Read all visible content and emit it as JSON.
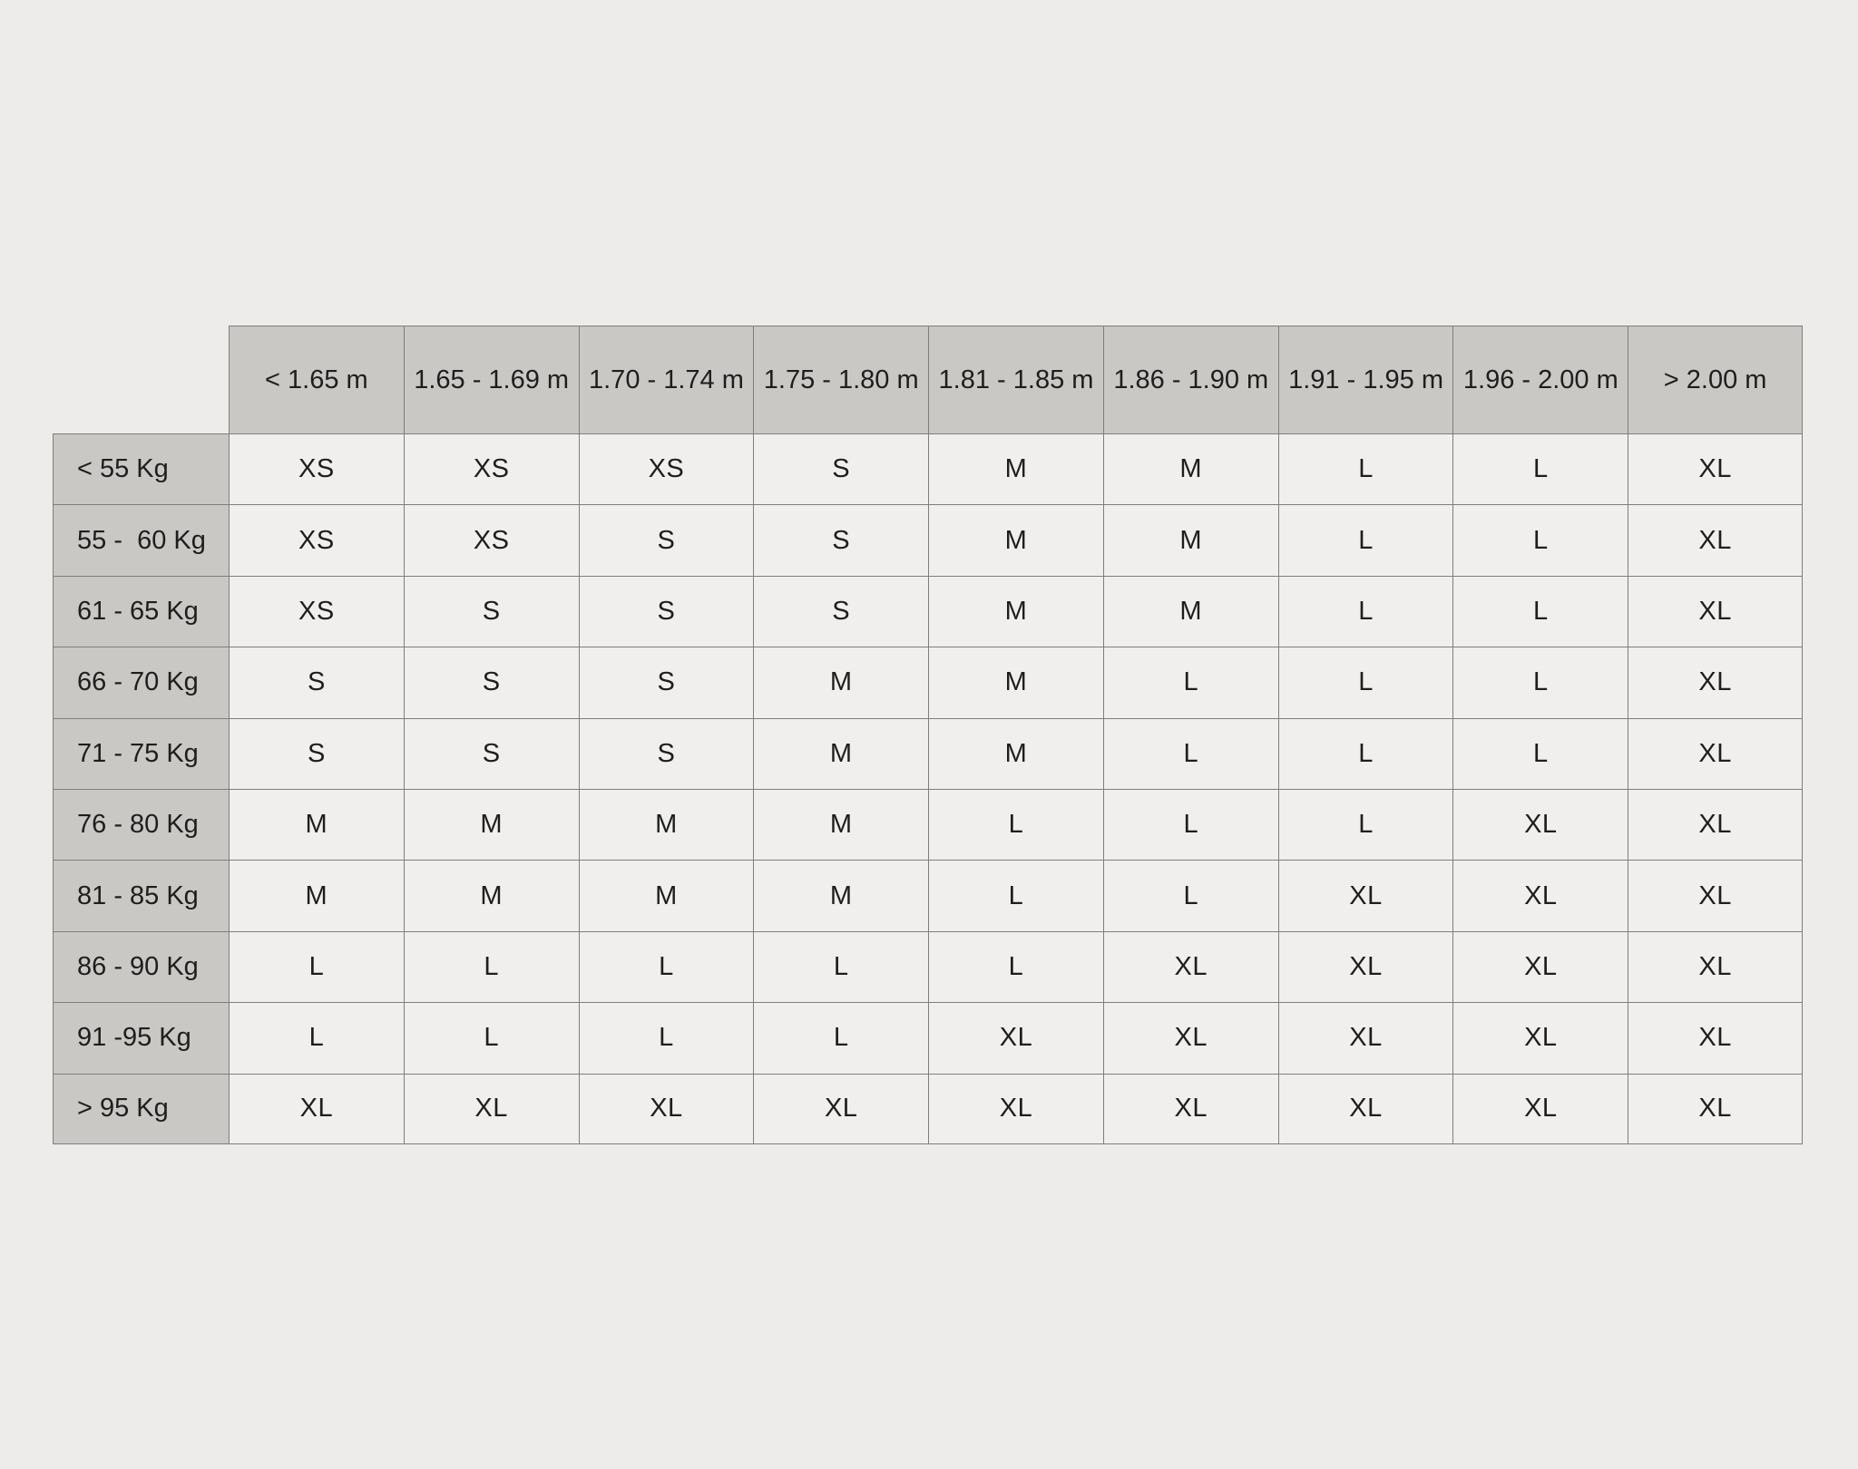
{
  "colors": {
    "background": "#edecea",
    "header_cell_bg": "#c9c8c5",
    "data_cell_bg": "#f0efed",
    "border": "#7e7e7c",
    "text": "#1e1e1e"
  },
  "chart_data": {
    "type": "table",
    "column_headers": [
      "< 1.65 m",
      "1.65 - 1.69 m",
      "1.70 - 1.74 m",
      "1.75 - 1.80 m",
      "1.81 - 1.85 m",
      "1.86 - 1.90 m",
      "1.91 - 1.95 m",
      "1.96 - 2.00 m",
      "> 2.00 m"
    ],
    "row_headers": [
      "< 55 Kg",
      "55 -  60 Kg",
      "61 - 65 Kg",
      "66 - 70 Kg",
      "71 - 75 Kg",
      "76 - 80 Kg",
      "81 - 85 Kg",
      "86 - 90 Kg",
      "91 -95 Kg",
      "> 95 Kg"
    ],
    "cells": [
      [
        "XS",
        "XS",
        "XS",
        "S",
        "M",
        "M",
        "L",
        "L",
        "XL"
      ],
      [
        "XS",
        "XS",
        "S",
        "S",
        "M",
        "M",
        "L",
        "L",
        "XL"
      ],
      [
        "XS",
        "S",
        "S",
        "S",
        "M",
        "M",
        "L",
        "L",
        "XL"
      ],
      [
        "S",
        "S",
        "S",
        "M",
        "M",
        "L",
        "L",
        "L",
        "XL"
      ],
      [
        "S",
        "S",
        "S",
        "M",
        "M",
        "L",
        "L",
        "L",
        "XL"
      ],
      [
        "M",
        "M",
        "M",
        "M",
        "L",
        "L",
        "L",
        "XL",
        "XL"
      ],
      [
        "M",
        "M",
        "M",
        "M",
        "L",
        "L",
        "XL",
        "XL",
        "XL"
      ],
      [
        "L",
        "L",
        "L",
        "L",
        "L",
        "XL",
        "XL",
        "XL",
        "XL"
      ],
      [
        "L",
        "L",
        "L",
        "L",
        "XL",
        "XL",
        "XL",
        "XL",
        "XL"
      ],
      [
        "XL",
        "XL",
        "XL",
        "XL",
        "XL",
        "XL",
        "XL",
        "XL",
        "XL"
      ]
    ]
  }
}
